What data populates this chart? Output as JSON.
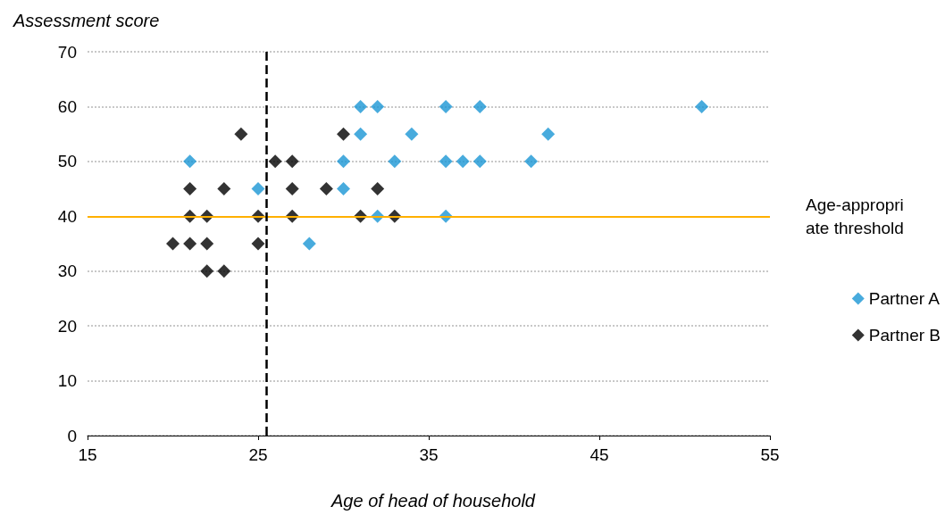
{
  "chart_data": {
    "type": "scatter",
    "xlabel": "Age of head of household",
    "ylabel": "Assessment score",
    "xlim": [
      15,
      55
    ],
    "xticks": [
      15,
      25,
      35,
      45,
      55
    ],
    "ylim": [
      0,
      70
    ],
    "yticks": [
      0,
      10,
      20,
      30,
      40,
      50,
      60,
      70
    ],
    "grid": "y",
    "legend": "right",
    "marker": "diamond",
    "series": [
      {
        "name": "Partner A",
        "color": "#1a96d4",
        "x": [
          21,
          25,
          28,
          30,
          30,
          31,
          31,
          32,
          32,
          33,
          34,
          36,
          36,
          36,
          37,
          38,
          38,
          41,
          42,
          51
        ],
        "values": [
          50,
          45,
          35,
          50,
          45,
          60,
          55,
          60,
          40,
          50,
          55,
          60,
          50,
          40,
          50,
          60,
          50,
          50,
          55,
          60
        ]
      },
      {
        "name": "Partner B",
        "color": "#000000",
        "x": [
          20,
          21,
          21,
          21,
          22,
          22,
          22,
          23,
          23,
          24,
          25,
          25,
          26,
          27,
          27,
          27,
          29,
          30,
          31,
          32,
          33
        ],
        "values": [
          35,
          45,
          40,
          35,
          40,
          35,
          30,
          45,
          30,
          55,
          40,
          35,
          50,
          50,
          45,
          40,
          45,
          55,
          40,
          45,
          40
        ]
      }
    ],
    "ref_lines": [
      {
        "axis": "y",
        "value": 40,
        "label": "Age-appropriate threshold",
        "color": "#ffb000",
        "line_style": "solid"
      },
      {
        "axis": "x",
        "value": 25.5,
        "label": null,
        "color": "#000000",
        "line_style": "dashed"
      }
    ]
  }
}
